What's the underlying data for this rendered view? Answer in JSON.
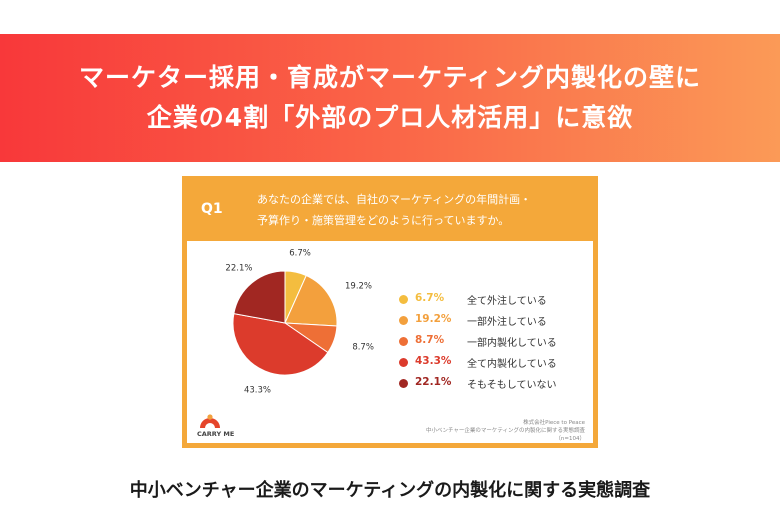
{
  "banner": {
    "line1": "マーケター採用・育成がマーケティング内製化の壁に",
    "line2": "企業の4割「外部のプロ人材活用」に意欲"
  },
  "card": {
    "q_label": "Q1",
    "question_line1": "あなたの企業では、自社のマーケティングの年間計画・",
    "question_line2": "予算作り・施策管理をどのように行っていますか。",
    "logo_text": "CARRY ME",
    "source_line1": "株式会社Piece to Peace",
    "source_line2": "中小ベンチャー企業のマーケティングの内製化に関する実態調査",
    "source_line3": "（n=104）"
  },
  "chart_data": {
    "type": "pie",
    "slices": [
      {
        "label": "全て外注している",
        "value": 6.7,
        "value_label": "6.7%",
        "color": "#f4bd3f"
      },
      {
        "label": "一部外注している",
        "value": 19.2,
        "value_label": "19.2%",
        "color": "#f3a03d"
      },
      {
        "label": "一部内製化している",
        "value": 8.7,
        "value_label": "8.7%",
        "color": "#ee6f36"
      },
      {
        "label": "全て内製化している",
        "value": 43.3,
        "value_label": "43.3%",
        "color": "#dc3b2c"
      },
      {
        "label": "そもそもしていない",
        "value": 22.1,
        "value_label": "22.1%",
        "color": "#a12722"
      }
    ],
    "legend_position": "right"
  },
  "caption": "中小ベンチャー企業のマーケティングの内製化に関する実態調査"
}
